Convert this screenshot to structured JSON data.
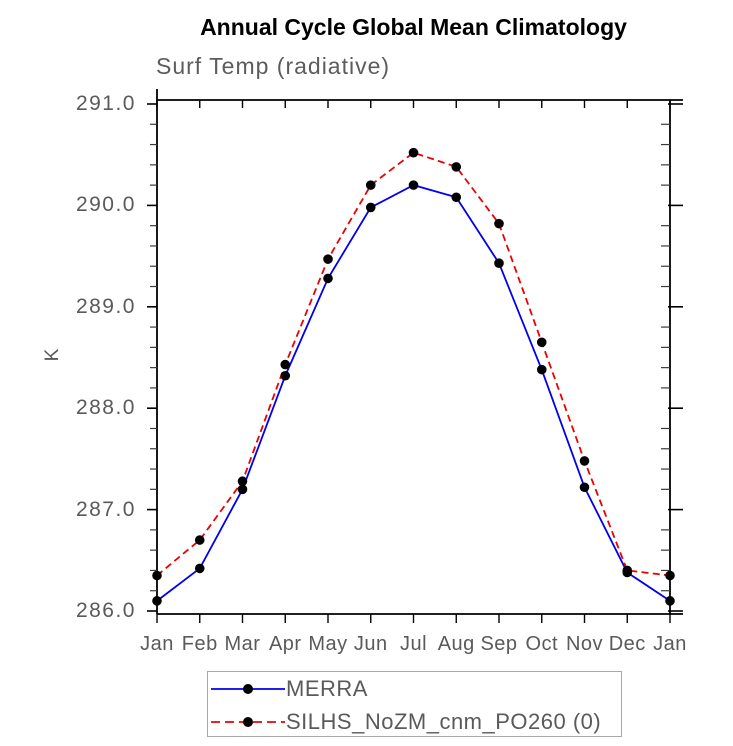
{
  "page": {
    "title": "Annual Cycle Global Mean Climatology",
    "subtitle": "Surf Temp (radiative)"
  },
  "chart_data": {
    "type": "line",
    "title": "Annual Cycle Global Mean Climatology",
    "subtitle": "Surf Temp (radiative)",
    "xlabel": "",
    "ylabel": "K",
    "ylim": [
      286.0,
      291.0
    ],
    "ytick_interval": 1.0,
    "yminor_interval": 0.2,
    "ytick_labels": [
      "286.0",
      "287.0",
      "288.0",
      "289.0",
      "290.0",
      "291.0"
    ],
    "categories": [
      "Jan",
      "Feb",
      "Mar",
      "Apr",
      "May",
      "Jun",
      "Jul",
      "Aug",
      "Sep",
      "Oct",
      "Nov",
      "Dec",
      "Jan"
    ],
    "grid": false,
    "legend_position": "bottom",
    "marker": "filled-circle",
    "marker_color": "#000000",
    "axis_color": "#000000",
    "text_color": "#5a5a5a",
    "legend_border_color": "#a9a9a9",
    "series": [
      {
        "name": "MERRA",
        "color": "#0000ee",
        "line_style": "solid",
        "values": [
          286.1,
          286.42,
          287.2,
          288.32,
          289.28,
          289.98,
          290.2,
          290.08,
          289.43,
          288.38,
          287.22,
          286.38,
          286.1
        ]
      },
      {
        "name": "SILHS_NoZM_cnm_PO260 (0)",
        "color": "#ee0000",
        "line_style": "dashed",
        "values": [
          286.35,
          286.7,
          287.28,
          288.43,
          289.47,
          290.2,
          290.52,
          290.38,
          289.82,
          288.65,
          287.48,
          286.4,
          286.35
        ]
      }
    ]
  }
}
